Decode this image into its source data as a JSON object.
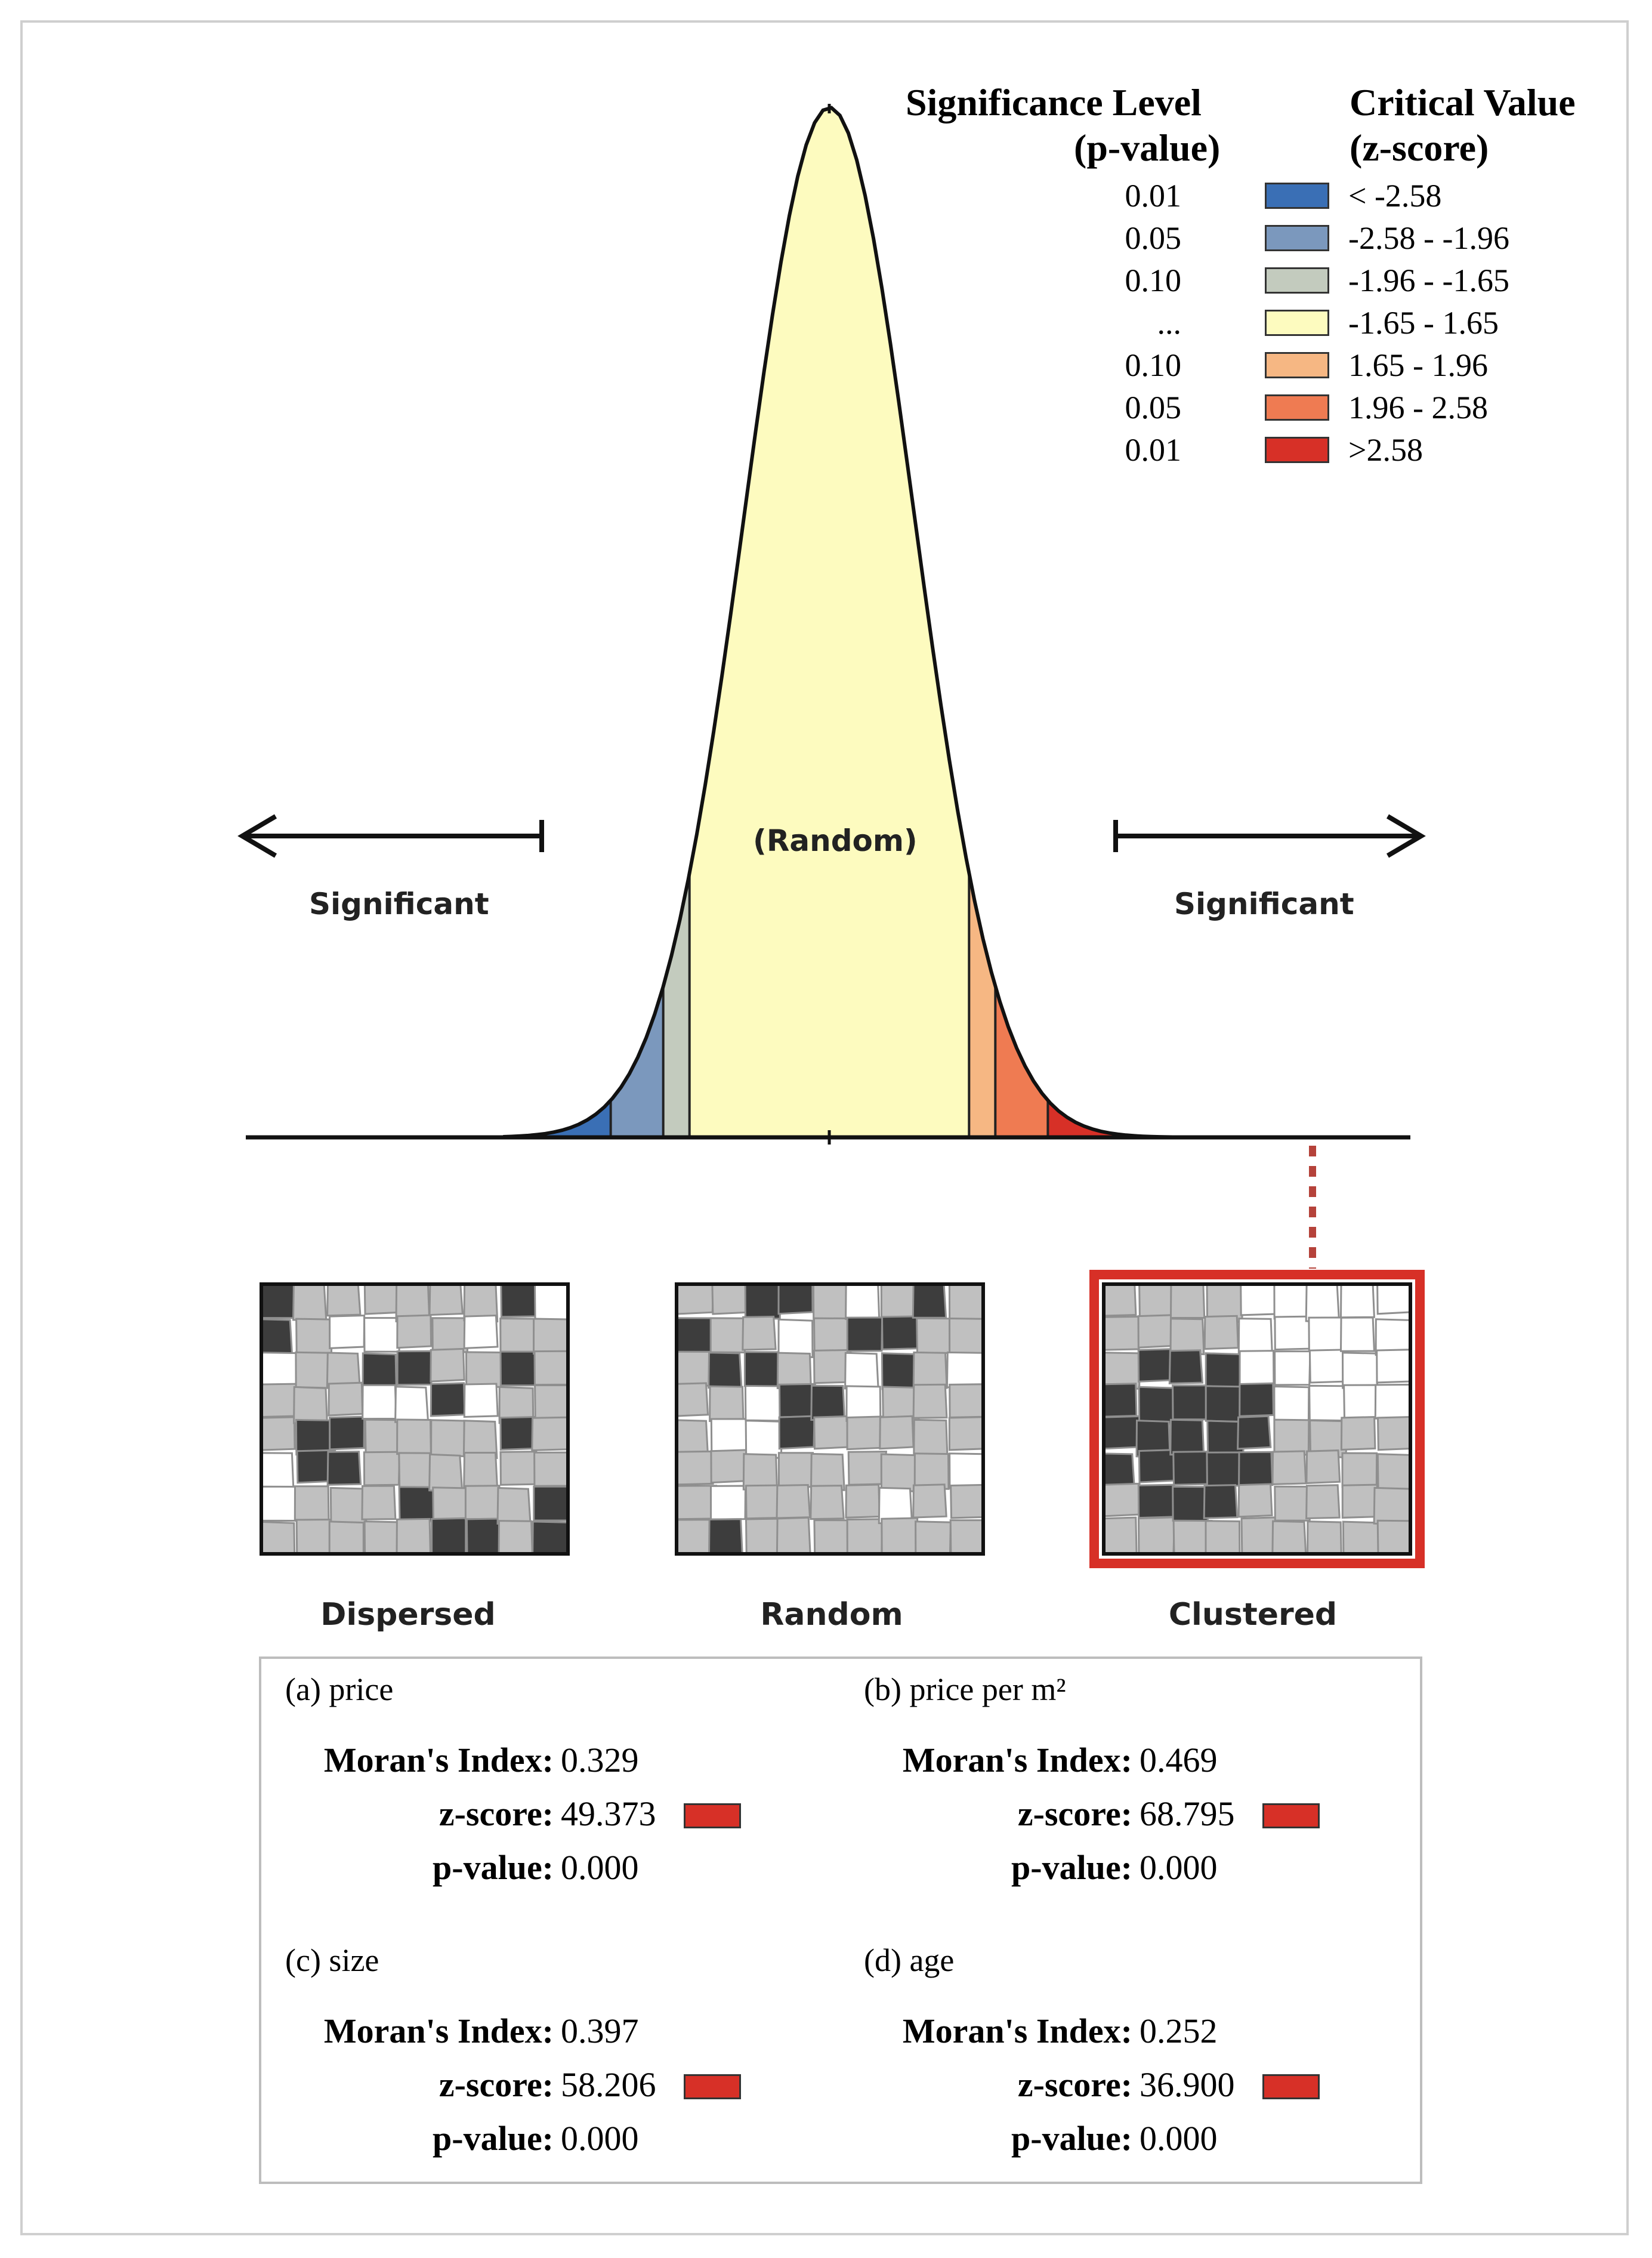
{
  "legend": {
    "header_p_line1": "Significance Level",
    "header_p_line2": "(p-value)",
    "header_z_line1": "Critical Value",
    "header_z_line2": "(z-score)",
    "rows": [
      {
        "p": "0.01",
        "z": "< -2.58",
        "color": "#3a6fb5"
      },
      {
        "p": "0.05",
        "z": "-2.58 - -1.96",
        "color": "#7b98bd"
      },
      {
        "p": "0.10",
        "z": "-1.96 - -1.65",
        "color": "#c3cbbe"
      },
      {
        "p": "...",
        "z": "-1.65 - 1.65",
        "color": "#fdfbbf"
      },
      {
        "p": "0.10",
        "z": "1.65 - 1.96",
        "color": "#f6b783"
      },
      {
        "p": "0.05",
        "z": "1.96 - 2.58",
        "color": "#ef7b52"
      },
      {
        "p": "0.01",
        "z": ">2.58",
        "color": "#d73027"
      }
    ]
  },
  "curve": {
    "left_label": "Significant",
    "center_label": "(Random)",
    "right_label": "Significant"
  },
  "maps": [
    {
      "caption": "Dispersed"
    },
    {
      "caption": "Random"
    },
    {
      "caption": "Clustered"
    }
  ],
  "highlight_color": "#d73027",
  "stats": {
    "labels": {
      "moran": "Moran's Index:",
      "z": "z-score:",
      "p": "p-value:"
    },
    "panels": [
      {
        "title": "(a) price",
        "moran": "0.329",
        "z": "49.373",
        "p": "0.000"
      },
      {
        "title": "(b) price per m²",
        "moran": "0.469",
        "z": "68.795",
        "p": "0.000"
      },
      {
        "title": "(c) size",
        "moran": "0.397",
        "z": "58.206",
        "p": "0.000"
      },
      {
        "title": "(d) age",
        "moran": "0.252",
        "z": "36.900",
        "p": "0.000"
      }
    ]
  }
}
